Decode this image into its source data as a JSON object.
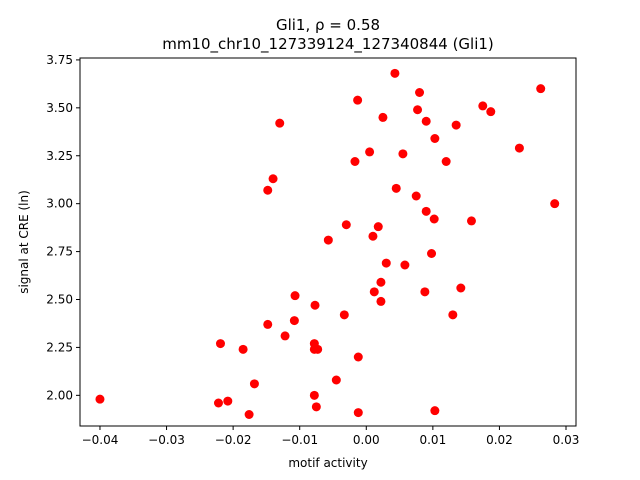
{
  "chart_data": {
    "type": "scatter",
    "title_line1": "Gli1, ρ = 0.58",
    "title_line2": "mm10_chr10_127339124_127340844 (Gli1)",
    "xlabel": "motif activity",
    "ylabel": "signal at CRE (ln)",
    "xlim": [
      -0.043,
      0.0315
    ],
    "ylim": [
      1.84,
      3.76
    ],
    "xticks": [
      -0.04,
      -0.03,
      -0.02,
      -0.01,
      0.0,
      0.01,
      0.02,
      0.03
    ],
    "xtick_labels": [
      "−0.04",
      "−0.03",
      "−0.02",
      "−0.01",
      "0.00",
      "0.01",
      "0.02",
      "0.03"
    ],
    "yticks": [
      2.0,
      2.25,
      2.5,
      2.75,
      3.0,
      3.25,
      3.5,
      3.75
    ],
    "ytick_labels": [
      "2.00",
      "2.25",
      "2.50",
      "2.75",
      "3.00",
      "3.25",
      "3.50",
      "3.75"
    ],
    "grid": false,
    "marker_color": "#ff0000",
    "points": [
      {
        "x": -0.04,
        "y": 1.98
      },
      {
        "x": -0.0222,
        "y": 1.96
      },
      {
        "x": -0.0208,
        "y": 1.97
      },
      {
        "x": -0.0176,
        "y": 1.9
      },
      {
        "x": -0.0168,
        "y": 2.06
      },
      {
        "x": -0.0219,
        "y": 2.27
      },
      {
        "x": -0.0185,
        "y": 2.24
      },
      {
        "x": -0.0148,
        "y": 2.37
      },
      {
        "x": -0.0148,
        "y": 3.07
      },
      {
        "x": -0.014,
        "y": 3.13
      },
      {
        "x": -0.013,
        "y": 3.42
      },
      {
        "x": -0.0122,
        "y": 2.31
      },
      {
        "x": -0.0108,
        "y": 2.39
      },
      {
        "x": -0.0107,
        "y": 2.52
      },
      {
        "x": -0.0077,
        "y": 2.47
      },
      {
        "x": -0.0078,
        "y": 2.27
      },
      {
        "x": -0.0078,
        "y": 2.24
      },
      {
        "x": -0.0073,
        "y": 2.24
      },
      {
        "x": -0.0078,
        "y": 2.0
      },
      {
        "x": -0.0075,
        "y": 1.94
      },
      {
        "x": -0.0057,
        "y": 2.81
      },
      {
        "x": -0.0045,
        "y": 2.08
      },
      {
        "x": -0.0033,
        "y": 2.42
      },
      {
        "x": -0.003,
        "y": 2.89
      },
      {
        "x": -0.0017,
        "y": 3.22
      },
      {
        "x": -0.0013,
        "y": 3.54
      },
      {
        "x": -0.0012,
        "y": 2.2
      },
      {
        "x": -0.0012,
        "y": 1.91
      },
      {
        "x": 0.0005,
        "y": 3.27
      },
      {
        "x": 0.001,
        "y": 2.83
      },
      {
        "x": 0.0012,
        "y": 2.54
      },
      {
        "x": 0.0018,
        "y": 2.88
      },
      {
        "x": 0.0022,
        "y": 2.49
      },
      {
        "x": 0.0022,
        "y": 2.59
      },
      {
        "x": 0.0025,
        "y": 3.45
      },
      {
        "x": 0.003,
        "y": 2.69
      },
      {
        "x": 0.0043,
        "y": 3.68
      },
      {
        "x": 0.0045,
        "y": 3.08
      },
      {
        "x": 0.0055,
        "y": 3.26
      },
      {
        "x": 0.0058,
        "y": 2.68
      },
      {
        "x": 0.0075,
        "y": 3.04
      },
      {
        "x": 0.0077,
        "y": 3.49
      },
      {
        "x": 0.008,
        "y": 3.58
      },
      {
        "x": 0.0088,
        "y": 2.54
      },
      {
        "x": 0.009,
        "y": 3.43
      },
      {
        "x": 0.009,
        "y": 2.96
      },
      {
        "x": 0.0098,
        "y": 2.74
      },
      {
        "x": 0.0102,
        "y": 2.92
      },
      {
        "x": 0.0103,
        "y": 3.34
      },
      {
        "x": 0.0103,
        "y": 1.92
      },
      {
        "x": 0.012,
        "y": 3.22
      },
      {
        "x": 0.013,
        "y": 2.42
      },
      {
        "x": 0.0135,
        "y": 3.41
      },
      {
        "x": 0.0142,
        "y": 2.56
      },
      {
        "x": 0.0158,
        "y": 2.91
      },
      {
        "x": 0.0175,
        "y": 3.51
      },
      {
        "x": 0.0187,
        "y": 3.48
      },
      {
        "x": 0.023,
        "y": 3.29
      },
      {
        "x": 0.0262,
        "y": 3.6
      },
      {
        "x": 0.0283,
        "y": 3.0
      }
    ]
  }
}
